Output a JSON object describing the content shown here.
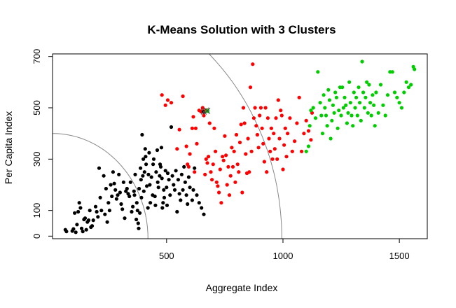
{
  "chart_data": {
    "type": "scatter",
    "title": "K-Means Solution with 3 Clusters",
    "xlabel": "Aggregate Index",
    "ylabel": "Per Capita Index",
    "xlim": [
      10,
      1620
    ],
    "ylim": [
      -10,
      710
    ],
    "x_ticks": [
      500,
      1000,
      1500
    ],
    "y_ticks": [
      0,
      100,
      300,
      500,
      700
    ],
    "grid": false,
    "legend": "none",
    "series": [
      {
        "color": "#000000",
        "points": [
          [
            65,
            25
          ],
          [
            70,
            18
          ],
          [
            95,
            20
          ],
          [
            100,
            28
          ],
          [
            105,
            90
          ],
          [
            110,
            15
          ],
          [
            115,
            45
          ],
          [
            120,
            95
          ],
          [
            125,
            130
          ],
          [
            130,
            110
          ],
          [
            135,
            30
          ],
          [
            140,
            18
          ],
          [
            145,
            65
          ],
          [
            150,
            70
          ],
          [
            155,
            25
          ],
          [
            160,
            55
          ],
          [
            165,
            62
          ],
          [
            170,
            100
          ],
          [
            175,
            35
          ],
          [
            180,
            40
          ],
          [
            185,
            62
          ],
          [
            195,
            115
          ],
          [
            200,
            95
          ],
          [
            205,
            75
          ],
          [
            210,
            265
          ],
          [
            215,
            150
          ],
          [
            220,
            100
          ],
          [
            230,
            235
          ],
          [
            235,
            85
          ],
          [
            240,
            185
          ],
          [
            245,
            55
          ],
          [
            250,
            130
          ],
          [
            255,
            100
          ],
          [
            260,
            200
          ],
          [
            265,
            155
          ],
          [
            270,
            250
          ],
          [
            275,
            205
          ],
          [
            280,
            180
          ],
          [
            285,
            145
          ],
          [
            290,
            160
          ],
          [
            295,
            240
          ],
          [
            300,
            170
          ],
          [
            305,
            125
          ],
          [
            310,
            105
          ],
          [
            315,
            210
          ],
          [
            320,
            70
          ],
          [
            325,
            175
          ],
          [
            330,
            185
          ],
          [
            335,
            165
          ],
          [
            340,
            155
          ],
          [
            345,
            210
          ],
          [
            350,
            95
          ],
          [
            355,
            115
          ],
          [
            360,
            175
          ],
          [
            362,
            160
          ],
          [
            365,
            240
          ],
          [
            370,
            65
          ],
          [
            372,
            130
          ],
          [
            375,
            100
          ],
          [
            378,
            50
          ],
          [
            380,
            30
          ],
          [
            382,
            185
          ],
          [
            385,
            90
          ],
          [
            388,
            265
          ],
          [
            390,
            220
          ],
          [
            392,
            150
          ],
          [
            395,
            395
          ],
          [
            398,
            235
          ],
          [
            400,
            300
          ],
          [
            402,
            175
          ],
          [
            405,
            250
          ],
          [
            408,
            340
          ],
          [
            410,
            310
          ],
          [
            412,
            280
          ],
          [
            415,
            195
          ],
          [
            420,
            110
          ],
          [
            422,
            240
          ],
          [
            425,
            325
          ],
          [
            428,
            200
          ],
          [
            430,
            130
          ],
          [
            435,
            230
          ],
          [
            440,
            160
          ],
          [
            442,
            280
          ],
          [
            445,
            300
          ],
          [
            450,
            155
          ],
          [
            452,
            120
          ],
          [
            455,
            250
          ],
          [
            460,
            335
          ],
          [
            462,
            210
          ],
          [
            465,
            190
          ],
          [
            470,
            235
          ],
          [
            472,
            280
          ],
          [
            475,
            270
          ],
          [
            478,
            345
          ],
          [
            480,
            225
          ],
          [
            482,
            110
          ],
          [
            485,
            130
          ],
          [
            488,
            180
          ],
          [
            490,
            150
          ],
          [
            495,
            255
          ],
          [
            500,
            190
          ],
          [
            502,
            120
          ],
          [
            505,
            245
          ],
          [
            510,
            220
          ],
          [
            515,
            160
          ],
          [
            520,
            425
          ],
          [
            525,
            235
          ],
          [
            530,
            200
          ],
          [
            535,
            180
          ],
          [
            540,
            255
          ],
          [
            545,
            95
          ],
          [
            550,
            220
          ],
          [
            555,
            165
          ],
          [
            560,
            140
          ],
          [
            565,
            240
          ],
          [
            570,
            180
          ],
          [
            575,
            270
          ],
          [
            580,
            210
          ],
          [
            585,
            160
          ],
          [
            590,
            125
          ],
          [
            595,
            230
          ],
          [
            600,
            190
          ],
          [
            610,
            140
          ],
          [
            615,
            180
          ],
          [
            620,
            265
          ],
          [
            630,
            160
          ],
          [
            640,
            130
          ],
          [
            650,
            110
          ],
          [
            660,
            85
          ]
        ]
      },
      {
        "color": "#ff0000",
        "points": [
          [
            480,
            550
          ],
          [
            495,
            510
          ],
          [
            505,
            530
          ],
          [
            520,
            520
          ],
          [
            545,
            340
          ],
          [
            555,
            415
          ],
          [
            570,
            545
          ],
          [
            585,
            350
          ],
          [
            590,
            280
          ],
          [
            595,
            270
          ],
          [
            600,
            320
          ],
          [
            610,
            420
          ],
          [
            615,
            465
          ],
          [
            620,
            250
          ],
          [
            625,
            420
          ],
          [
            630,
            360
          ],
          [
            640,
            490
          ],
          [
            648,
            485
          ],
          [
            655,
            500
          ],
          [
            660,
            470
          ],
          [
            665,
            240
          ],
          [
            670,
            300
          ],
          [
            675,
            285
          ],
          [
            680,
            310
          ],
          [
            685,
            440
          ],
          [
            690,
            250
          ],
          [
            695,
            220
          ],
          [
            700,
            280
          ],
          [
            705,
            420
          ],
          [
            710,
            330
          ],
          [
            715,
            210
          ],
          [
            720,
            195
          ],
          [
            725,
            170
          ],
          [
            730,
            260
          ],
          [
            735,
            130
          ],
          [
            740,
            310
          ],
          [
            745,
            295
          ],
          [
            750,
            390
          ],
          [
            755,
            315
          ],
          [
            760,
            200
          ],
          [
            765,
            270
          ],
          [
            770,
            160
          ],
          [
            775,
            235
          ],
          [
            780,
            345
          ],
          [
            785,
            270
          ],
          [
            790,
            330
          ],
          [
            795,
            210
          ],
          [
            800,
            395
          ],
          [
            805,
            280
          ],
          [
            810,
            250
          ],
          [
            815,
            365
          ],
          [
            820,
            435
          ],
          [
            825,
            170
          ],
          [
            830,
            500
          ],
          [
            835,
            440
          ],
          [
            840,
            320
          ],
          [
            845,
            245
          ],
          [
            850,
            380
          ],
          [
            855,
            250
          ],
          [
            860,
            580
          ],
          [
            865,
            330
          ],
          [
            870,
            670
          ],
          [
            875,
            460
          ],
          [
            880,
            500
          ],
          [
            885,
            430
          ],
          [
            890,
            395
          ],
          [
            895,
            345
          ],
          [
            900,
            470
          ],
          [
            905,
            500
          ],
          [
            910,
            420
          ],
          [
            915,
            360
          ],
          [
            920,
            290
          ],
          [
            925,
            500
          ],
          [
            930,
            250
          ],
          [
            935,
            460
          ],
          [
            940,
            380
          ],
          [
            945,
            330
          ],
          [
            950,
            420
          ],
          [
            955,
            300
          ],
          [
            960,
            400
          ],
          [
            965,
            340
          ],
          [
            970,
            460
          ],
          [
            975,
            300
          ],
          [
            980,
            530
          ],
          [
            985,
            380
          ],
          [
            990,
            490
          ],
          [
            995,
            470
          ],
          [
            1000,
            260
          ],
          [
            1005,
            355
          ],
          [
            1010,
            420
          ],
          [
            1015,
            310
          ],
          [
            1020,
            400
          ],
          [
            1030,
            460
          ],
          [
            1040,
            330
          ],
          [
            1050,
            370
          ],
          [
            1060,
            440
          ],
          [
            1070,
            540
          ],
          [
            1080,
            330
          ],
          [
            1090,
            400
          ],
          [
            1100,
            450
          ],
          [
            1110,
            410
          ],
          [
            1120,
            375
          ],
          [
            1125,
            480
          ]
        ]
      },
      {
        "color": "#00cc00",
        "points": [
          [
            1100,
            330
          ],
          [
            1110,
            350
          ],
          [
            1115,
            430
          ],
          [
            1120,
            490
          ],
          [
            1130,
            500
          ],
          [
            1140,
            460
          ],
          [
            1150,
            640
          ],
          [
            1160,
            520
          ],
          [
            1165,
            470
          ],
          [
            1170,
            400
          ],
          [
            1175,
            550
          ],
          [
            1180,
            500
          ],
          [
            1185,
            470
          ],
          [
            1190,
            430
          ],
          [
            1195,
            570
          ],
          [
            1200,
            530
          ],
          [
            1205,
            380
          ],
          [
            1210,
            450
          ],
          [
            1215,
            510
          ],
          [
            1220,
            480
          ],
          [
            1225,
            560
          ],
          [
            1230,
            540
          ],
          [
            1235,
            420
          ],
          [
            1240,
            490
          ],
          [
            1245,
            580
          ],
          [
            1250,
            470
          ],
          [
            1255,
            580
          ],
          [
            1260,
            500
          ],
          [
            1265,
            540
          ],
          [
            1270,
            510
          ],
          [
            1275,
            440
          ],
          [
            1280,
            480
          ],
          [
            1285,
            600
          ],
          [
            1290,
            520
          ],
          [
            1295,
            470
          ],
          [
            1300,
            430
          ],
          [
            1305,
            560
          ],
          [
            1310,
            500
          ],
          [
            1315,
            540
          ],
          [
            1320,
            470
          ],
          [
            1325,
            580
          ],
          [
            1330,
            520
          ],
          [
            1335,
            450
          ],
          [
            1340,
            680
          ],
          [
            1345,
            560
          ],
          [
            1350,
            500
          ],
          [
            1355,
            540
          ],
          [
            1360,
            600
          ],
          [
            1365,
            480
          ],
          [
            1370,
            590
          ],
          [
            1375,
            520
          ],
          [
            1380,
            470
          ],
          [
            1385,
            550
          ],
          [
            1390,
            510
          ],
          [
            1395,
            430
          ],
          [
            1400,
            560
          ],
          [
            1410,
            480
          ],
          [
            1420,
            590
          ],
          [
            1430,
            510
          ],
          [
            1440,
            470
          ],
          [
            1450,
            550
          ],
          [
            1460,
            640
          ],
          [
            1470,
            640
          ],
          [
            1480,
            560
          ],
          [
            1490,
            540
          ],
          [
            1500,
            520
          ],
          [
            1510,
            500
          ],
          [
            1520,
            560
          ],
          [
            1530,
            600
          ],
          [
            1540,
            580
          ],
          [
            1550,
            590
          ],
          [
            1560,
            660
          ],
          [
            1565,
            650
          ]
        ]
      }
    ],
    "centroids": [
      {
        "x": 660,
        "y": 485,
        "color": "#000000"
      },
      {
        "x": 670,
        "y": 490,
        "color": "#ff0000"
      },
      {
        "x": 675,
        "y": 488,
        "color": "#00cc00"
      }
    ],
    "annotations": {
      "type": "concentric-arcs",
      "center": [
        10,
        -10
      ],
      "radii": [
        410,
        985
      ],
      "color": "#888888"
    }
  }
}
